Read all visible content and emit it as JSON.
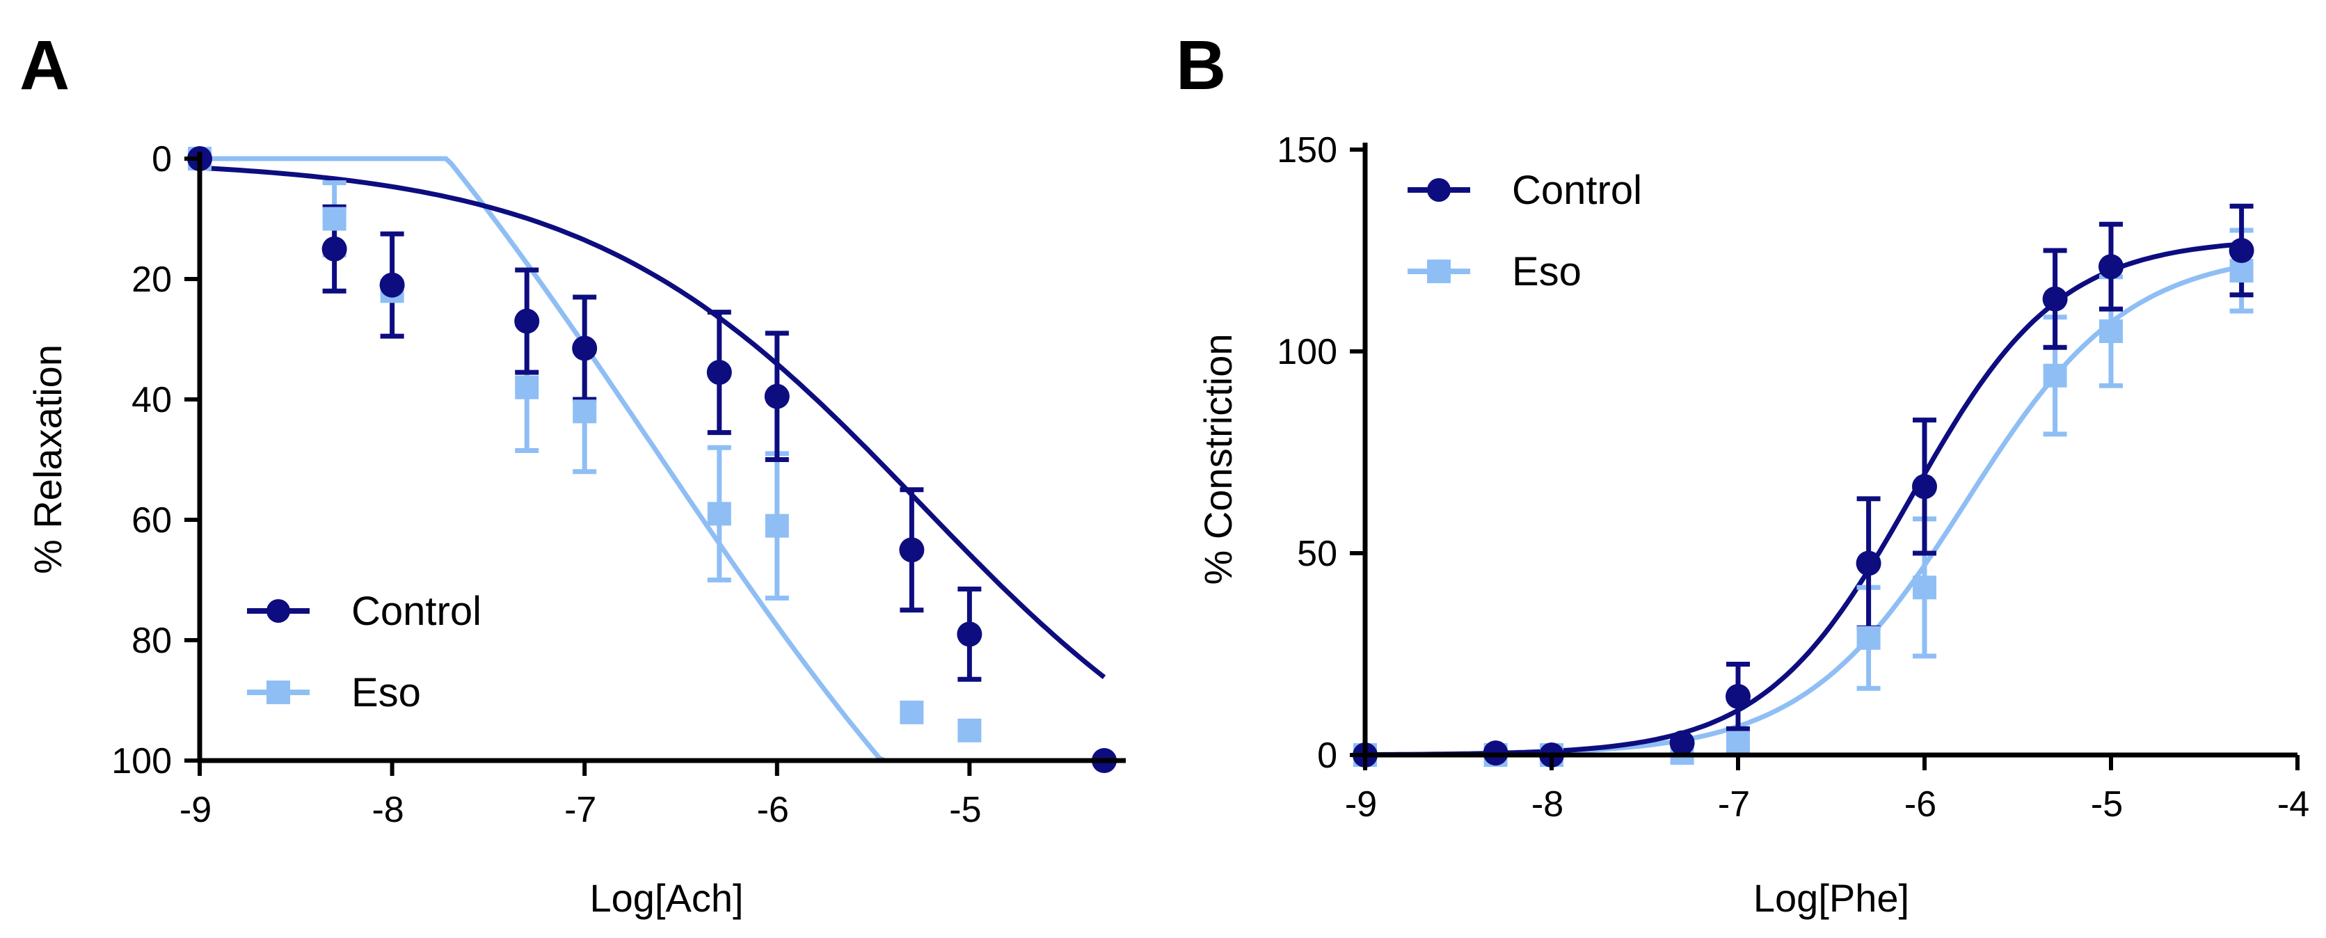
{
  "colors": {
    "control": "#0d0d80",
    "eso": "#8fbef5"
  },
  "chart_data": [
    {
      "panel": "A",
      "type": "scatter",
      "xlabel": "Log[Ach]",
      "ylabel": "% Relaxation",
      "xlim": [
        -9,
        -4.3
      ],
      "ylim": [
        0,
        100
      ],
      "y_inverted": true,
      "xticks": [
        -9,
        -8,
        -7,
        -6,
        -5
      ],
      "yticks": [
        0,
        20,
        40,
        60,
        80,
        100
      ],
      "legend_position": "bottom-left",
      "series": [
        {
          "name": "Control",
          "marker": "circle",
          "color_key": "control",
          "x": [
            -9,
            -8.3,
            -8,
            -7.3,
            -7,
            -6.3,
            -6,
            -5.3,
            -5,
            -4.3
          ],
          "y": [
            0,
            15,
            21,
            27,
            31.5,
            35.5,
            39.5,
            65,
            79,
            100
          ],
          "err": [
            0,
            7,
            8.5,
            8.5,
            8.5,
            10,
            10.5,
            10,
            7.5,
            0
          ],
          "fit": {
            "model": "sigmoid",
            "bottom": 0,
            "top": 115,
            "logEC50": -5.25,
            "hill": 0.5,
            "x_range": [
              -9,
              -4.3
            ]
          }
        },
        {
          "name": "Eso",
          "marker": "square",
          "color_key": "eso",
          "x": [
            -9,
            -8.3,
            -8,
            -7.3,
            -7,
            -6.3,
            -6,
            -5.3,
            -5
          ],
          "y": [
            0,
            10,
            22,
            38,
            42,
            59,
            61,
            92,
            95
          ],
          "err": [
            0,
            6,
            0,
            10.5,
            10,
            11,
            12,
            0,
            0
          ],
          "fit": {
            "model": "sigmoid",
            "bottom": -70,
            "top": 165,
            "logEC50": -6.65,
            "hill": 0.35,
            "x_range": [
              -9,
              -4.55
            ]
          }
        }
      ]
    },
    {
      "panel": "B",
      "type": "scatter",
      "xlabel": "Log[Phe]",
      "ylabel": "% Constriction",
      "xlim": [
        -9,
        -4
      ],
      "ylim": [
        0,
        150
      ],
      "y_inverted": false,
      "xticks": [
        -9,
        -8,
        -7,
        -6,
        -5,
        -4
      ],
      "yticks": [
        0,
        50,
        100,
        150
      ],
      "legend_position": "top-left",
      "series": [
        {
          "name": "Control",
          "marker": "circle",
          "color_key": "control",
          "x": [
            -9,
            -8.3,
            -8,
            -7.3,
            -7,
            -6.3,
            -6,
            -5.3,
            -5,
            -4.3
          ],
          "y": [
            0,
            0.5,
            0,
            3,
            14.5,
            47.5,
            66.5,
            113,
            121,
            125
          ],
          "err": [
            0,
            0,
            0,
            0,
            8,
            16,
            16.5,
            12,
            10.5,
            11
          ],
          "fit": {
            "model": "sigmoid",
            "bottom": 0,
            "top": 128,
            "logEC50": -6.07,
            "hill": 1.1,
            "x_range": [
              -9,
              -4.3
            ]
          }
        },
        {
          "name": "Eso",
          "marker": "square",
          "color_key": "eso",
          "x": [
            -9,
            -8.3,
            -8,
            -7.3,
            -7,
            -6.3,
            -6,
            -5.3,
            -5,
            -4.3
          ],
          "y": [
            0,
            0,
            0,
            0.5,
            3,
            29,
            41.5,
            94,
            105,
            120
          ],
          "err": [
            0,
            0,
            0,
            0,
            0,
            12.5,
            17,
            14.5,
            13.5,
            10
          ],
          "fit": {
            "model": "sigmoid",
            "bottom": 0,
            "top": 125,
            "logEC50": -5.78,
            "hill": 1.0,
            "x_range": [
              -9,
              -4.3
            ]
          }
        }
      ]
    }
  ]
}
